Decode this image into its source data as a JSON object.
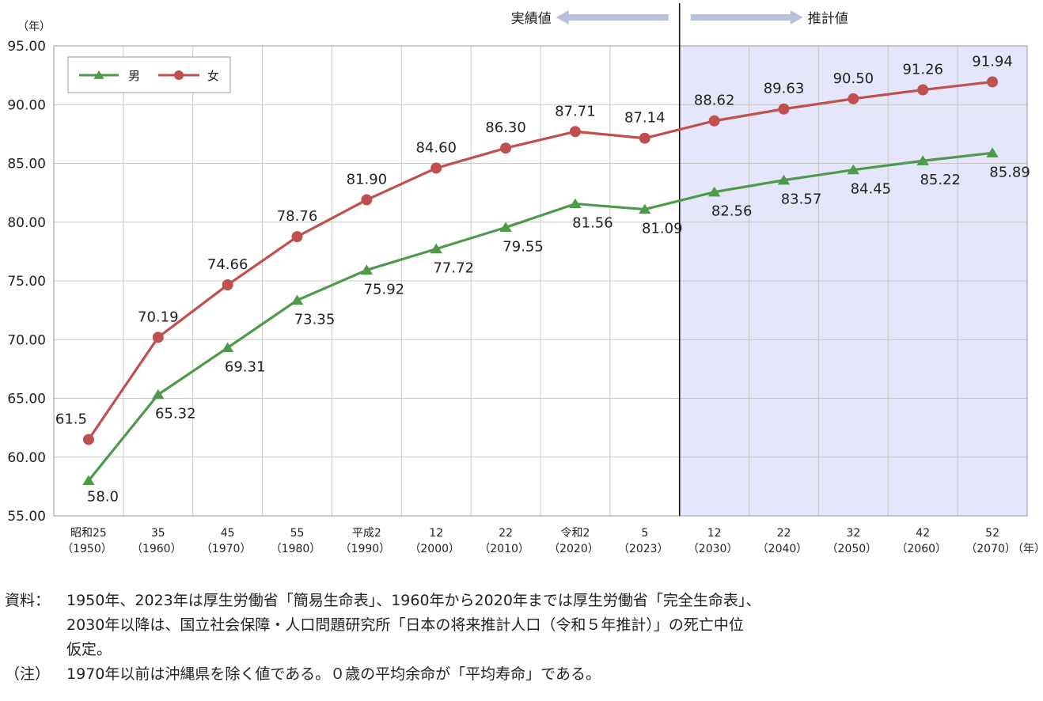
{
  "chart_data": {
    "type": "line",
    "title": "",
    "ylabel": "（年）",
    "xlabel": "（年）",
    "ylim": [
      55,
      95
    ],
    "yticks": [
      "95.00",
      "90.00",
      "85.00",
      "80.00",
      "75.00",
      "70.00",
      "65.00",
      "60.00",
      "55.00"
    ],
    "categories": [
      {
        "top": "昭和25",
        "bottom": "（1950）"
      },
      {
        "top": "35",
        "bottom": "（1960）"
      },
      {
        "top": "45",
        "bottom": "（1970）"
      },
      {
        "top": "55",
        "bottom": "（1980）"
      },
      {
        "top": "平成2",
        "bottom": "（1990）"
      },
      {
        "top": "12",
        "bottom": "（2000）"
      },
      {
        "top": "22",
        "bottom": "（2010）"
      },
      {
        "top": "令和2",
        "bottom": "（2020）"
      },
      {
        "top": "5",
        "bottom": "（2023）"
      },
      {
        "top": "12",
        "bottom": "（2030）"
      },
      {
        "top": "22",
        "bottom": "（2040）"
      },
      {
        "top": "32",
        "bottom": "（2050）"
      },
      {
        "top": "42",
        "bottom": "（2060）"
      },
      {
        "top": "52",
        "bottom": "（2070）"
      }
    ],
    "series": [
      {
        "name": "男",
        "color": "#4e9a4a",
        "marker": "triangle",
        "values": [
          58.0,
          65.32,
          69.31,
          73.35,
          75.92,
          77.72,
          79.55,
          81.56,
          81.09,
          82.56,
          83.57,
          84.45,
          85.22,
          85.89
        ],
        "labels": [
          "58.0",
          "65.32",
          "69.31",
          "73.35",
          "75.92",
          "77.72",
          "79.55",
          "81.56",
          "81.09",
          "82.56",
          "83.57",
          "84.45",
          "85.22",
          "85.89"
        ]
      },
      {
        "name": "女",
        "color": "#c0504d",
        "marker": "circle",
        "values": [
          61.5,
          70.19,
          74.66,
          78.76,
          81.9,
          84.6,
          86.3,
          87.71,
          87.14,
          88.62,
          89.63,
          90.5,
          91.26,
          91.94
        ],
        "labels": [
          "61.5",
          "70.19",
          "74.66",
          "78.76",
          "81.90",
          "84.60",
          "86.30",
          "87.71",
          "87.14",
          "88.62",
          "89.63",
          "90.50",
          "91.26",
          "91.94"
        ]
      }
    ],
    "grid": true,
    "legend": "top-left",
    "regions": {
      "actual_label": "実績値",
      "projected_label": "推計値",
      "projected_fill": "#e5e5fb",
      "arrow_color": "#b9c0dc"
    }
  },
  "notes": {
    "source_head": "資料：",
    "source_lines": [
      "1950年、2023年は厚生労働省「簡易生命表」、1960年から2020年までは厚生労働省「完全生命表」、",
      "2030年以降は、国立社会保障・人口問題研究所「日本の将来推計人口（令和５年推計）」の死亡中位",
      "仮定。"
    ],
    "note_head": "（注）",
    "note_line": "1970年以前は沖縄県を除く値である。０歳の平均余命が「平均寿命」である。"
  }
}
